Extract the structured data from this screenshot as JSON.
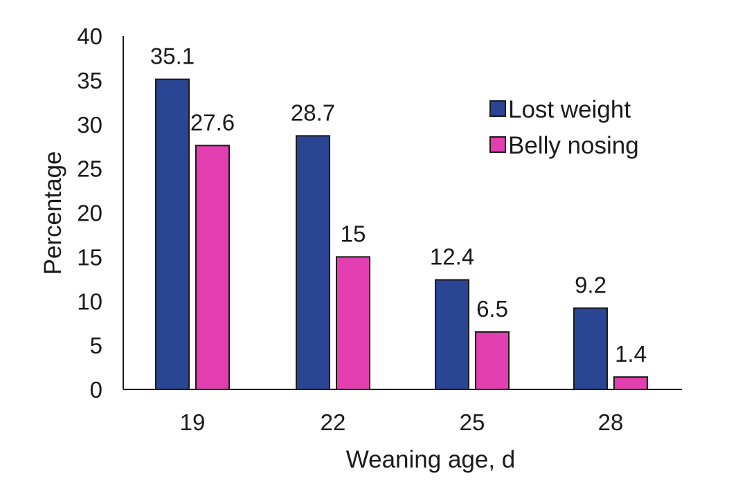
{
  "chart_data": {
    "type": "bar",
    "title": "",
    "xlabel": "Weaning age, d",
    "ylabel": "Percentage",
    "categories": [
      "19",
      "22",
      "25",
      "28"
    ],
    "ylim": [
      0,
      40
    ],
    "yticks": [
      0,
      5,
      10,
      15,
      20,
      25,
      30,
      35,
      40
    ],
    "grid": false,
    "legend_position": "top-right",
    "series": [
      {
        "name": "Lost weight",
        "color": "#2a4593",
        "values": [
          35.1,
          28.7,
          12.4,
          9.2
        ],
        "labels": [
          "35.1",
          "28.7",
          "12.4",
          "9.2"
        ]
      },
      {
        "name": "Belly nosing",
        "color": "#e33fb0",
        "values": [
          27.6,
          15,
          6.5,
          1.4
        ],
        "labels": [
          "27.6",
          "15",
          "6.5",
          "1.4"
        ]
      }
    ]
  }
}
